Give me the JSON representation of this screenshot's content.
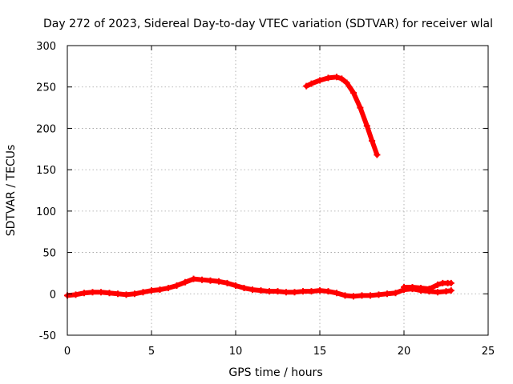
{
  "chart_data": {
    "type": "scatter",
    "title": "Day 272 of 2023, Sidereal Day-to-day VTEC variation (SDTVAR) for receiver wlal",
    "xlabel": "GPS time / hours",
    "ylabel": "SDTVAR / TECUs",
    "xlim": [
      0,
      25
    ],
    "ylim": [
      -50,
      300
    ],
    "x_ticks": [
      "0",
      "5",
      "10",
      "15",
      "20",
      "25"
    ],
    "y_ticks": [
      "-50",
      "0",
      "50",
      "100",
      "150",
      "200",
      "250",
      "300"
    ],
    "grid": true,
    "marker": "plus",
    "color": "#ff0000",
    "series": [
      {
        "x": [
          0,
          0.5,
          1,
          1.5,
          2,
          2.5,
          3,
          3.5,
          4,
          4.5,
          5,
          5.5,
          6,
          6.5,
          7,
          7.5,
          8,
          8.5,
          9,
          9.5,
          10,
          10.5,
          11,
          11.5,
          12,
          12.5,
          13,
          13.5,
          14,
          14.5,
          15,
          15.5,
          16,
          16.5,
          17,
          17.5,
          18,
          18.5,
          19,
          19.5,
          20,
          20.5,
          21,
          21.5,
          22,
          22.5,
          22.8
        ],
        "y": [
          -2,
          -1,
          1,
          2,
          2,
          1,
          0,
          -1,
          0,
          2,
          4,
          5,
          7,
          10,
          14,
          18,
          17,
          16,
          15,
          13,
          10,
          7,
          5,
          4,
          3,
          3,
          2,
          2,
          3,
          3,
          4,
          3,
          1,
          -2,
          -3,
          -2,
          -2,
          -1,
          0,
          1,
          5,
          6,
          4,
          3,
          2,
          3,
          4
        ]
      },
      {
        "x": [
          20,
          20.5,
          21,
          21.5,
          22,
          22.3,
          22.6,
          22.8
        ],
        "y": [
          8,
          8,
          7,
          6,
          11,
          13,
          13,
          13
        ]
      },
      {
        "x": [
          14.2,
          14.5,
          15,
          15.5,
          16,
          16.3,
          16.6,
          17,
          17.4,
          17.8,
          18.1,
          18.4
        ],
        "y": [
          251,
          254,
          258,
          261,
          262,
          260,
          255,
          243,
          225,
          203,
          185,
          168
        ]
      }
    ]
  }
}
